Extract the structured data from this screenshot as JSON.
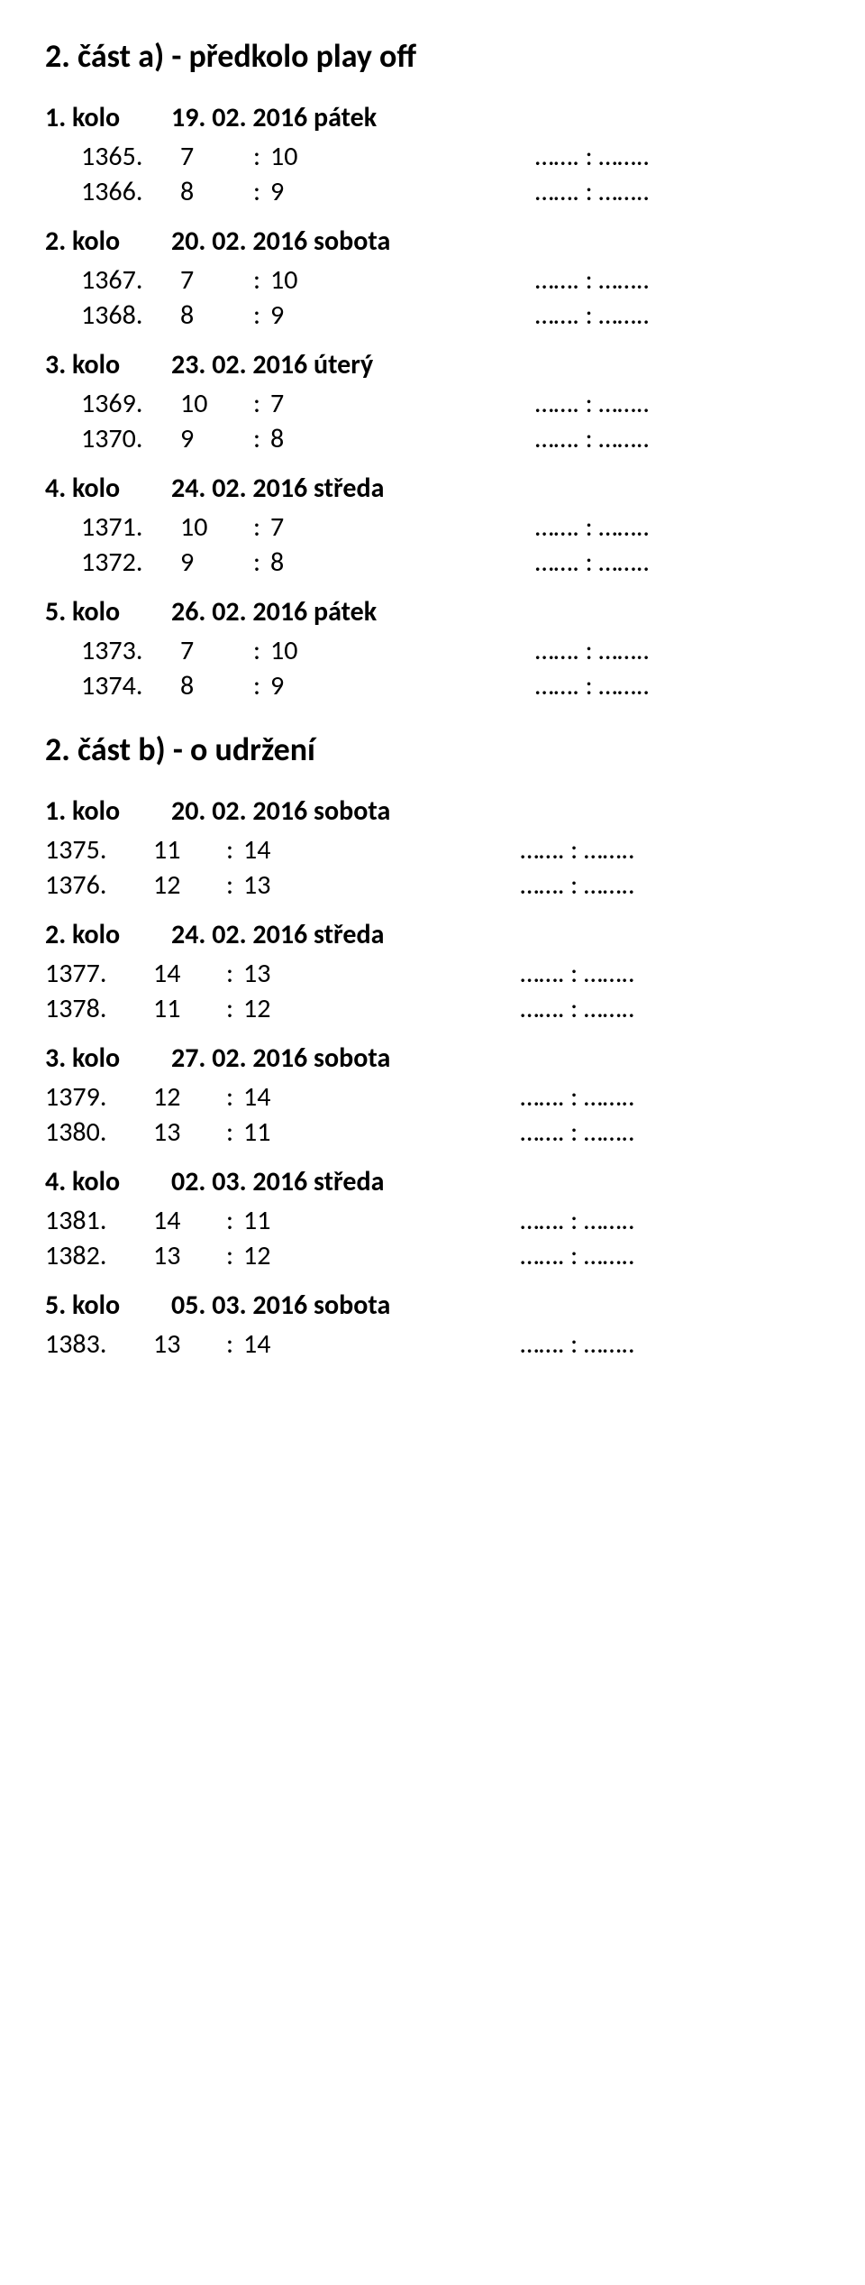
{
  "sectionA": {
    "title": "2. část a)  - předkolo play off",
    "rounds": [
      {
        "label": "1. kolo",
        "date": "19. 02. 2016 pátek",
        "matches": [
          {
            "num": "1365.",
            "a": "7",
            "b": "10",
            "dots": "……. : …….."
          },
          {
            "num": "1366.",
            "a": "8",
            "b": "9",
            "dots": "……. : …….."
          }
        ]
      },
      {
        "label": "2. kolo",
        "date": "20. 02. 2016 sobota",
        "matches": [
          {
            "num": "1367.",
            "a": "7",
            "b": "10",
            "dots": "……. : …….."
          },
          {
            "num": "1368.",
            "a": "8",
            "b": "9",
            "dots": "……. : …….."
          }
        ]
      },
      {
        "label": "3. kolo",
        "date": "23. 02. 2016 úterý",
        "matches": [
          {
            "num": "1369.",
            "a": "10",
            "b": "7",
            "dots": "……. : …….."
          },
          {
            "num": "1370.",
            "a": "9",
            "b": "8",
            "dots": "……. : …….."
          }
        ]
      },
      {
        "label": "4. kolo",
        "date": "24. 02. 2016 středa",
        "matches": [
          {
            "num": "1371.",
            "a": "10",
            "b": "7",
            "dots": "……. : …….."
          },
          {
            "num": "1372.",
            "a": "9",
            "b": "8",
            "dots": "……. : …….."
          }
        ]
      },
      {
        "label": "5. kolo",
        "date": "26. 02. 2016 pátek",
        "matches": [
          {
            "num": "1373.",
            "a": "7",
            "b": "10",
            "dots": "……. : …….."
          },
          {
            "num": "1374.",
            "a": "8",
            "b": "9",
            "dots": "……. : …….."
          }
        ]
      }
    ]
  },
  "sectionB": {
    "title": "2. část b) - o udržení",
    "rounds": [
      {
        "label": "1. kolo",
        "date": "20. 02. 2016 sobota",
        "matches": [
          {
            "num": "1375.",
            "a": "11",
            "b": "14",
            "dots": "……. : …….."
          },
          {
            "num": "1376.",
            "a": "12",
            "b": "13",
            "dots": "……. : …….."
          }
        ]
      },
      {
        "label": "2. kolo",
        "date": "24. 02. 2016 středa",
        "matches": [
          {
            "num": "1377.",
            "a": "14",
            "b": "13",
            "dots": "……. : …….."
          },
          {
            "num": "1378.",
            "a": "11",
            "b": "12",
            "dots": "……. : …….."
          }
        ]
      },
      {
        "label": "3. kolo",
        "date": "27. 02. 2016 sobota",
        "matches": [
          {
            "num": "1379.",
            "a": "12",
            "b": "14",
            "dots": "……. : …….."
          },
          {
            "num": "1380.",
            "a": "13",
            "b": "11",
            "dots": "……. : …….."
          }
        ]
      },
      {
        "label": "4. kolo",
        "date": "02. 03. 2016 středa",
        "matches": [
          {
            "num": "1381.",
            "a": "14",
            "b": "11",
            "dots": "……. : …….."
          },
          {
            "num": "1382.",
            "a": "13",
            "b": "12",
            "dots": "……. : …….."
          }
        ]
      },
      {
        "label": "5. kolo",
        "date": "05. 03. 2016 sobota",
        "matches": [
          {
            "num": "1383.",
            "a": "13",
            "b": "14",
            "dots": "……. : …….."
          }
        ]
      }
    ]
  }
}
